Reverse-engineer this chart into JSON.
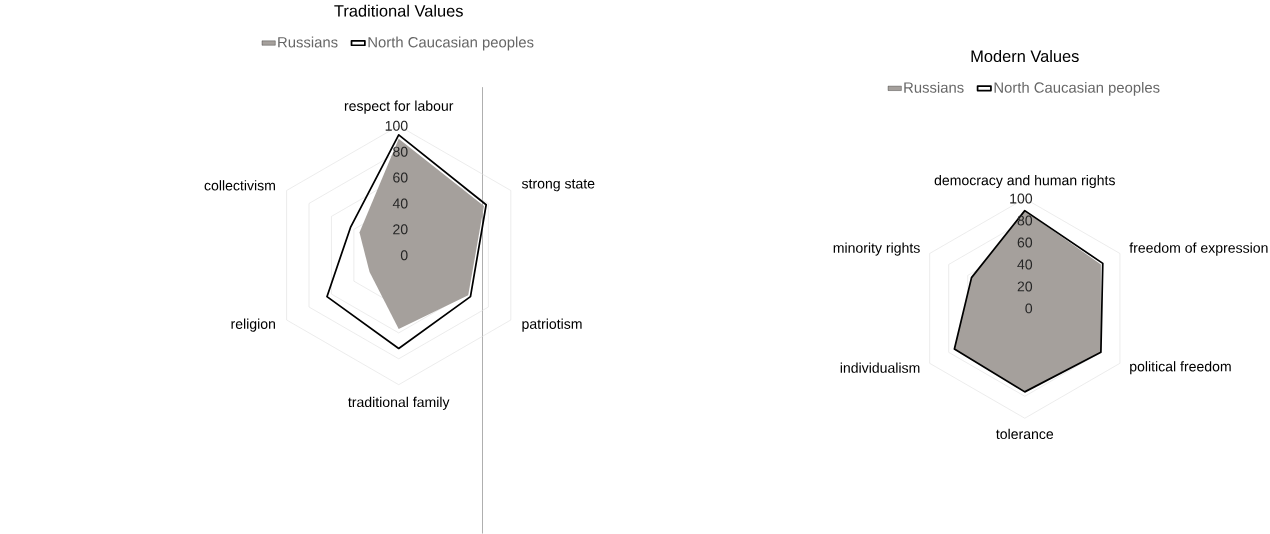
{
  "chart_data": [
    {
      "type": "radar",
      "title": "Traditional Values",
      "categories": [
        "respect for labour",
        "strong state",
        "patriotism",
        "traditional family",
        "religion",
        "collectivism"
      ],
      "series": [
        {
          "name": "Russians",
          "type": "area",
          "color": "#a5a09c",
          "values": [
            90,
            76,
            62,
            57,
            26,
            35
          ]
        },
        {
          "name": "North Caucasian peoples",
          "type": "radar",
          "color": "#000000",
          "values": [
            93,
            78,
            64,
            72,
            64,
            43
          ]
        }
      ],
      "ylim": [
        0,
        100
      ],
      "yticks": [
        0,
        20,
        40,
        60,
        80,
        100
      ],
      "grid": true,
      "legend": "top"
    },
    {
      "type": "radar",
      "title": "Modern Values",
      "categories": [
        "democracy and human rights",
        "freedom of expression",
        "political freedom",
        "tolerance",
        "individualism",
        "minority rights"
      ],
      "series": [
        {
          "name": "Russians",
          "type": "area",
          "color": "#a5a09c",
          "values": [
            89,
            80,
            80,
            76,
            74,
            56
          ]
        },
        {
          "name": "North Caucasian peoples",
          "type": "radar",
          "color": "#000000",
          "values": [
            89,
            82,
            80,
            76,
            74,
            56
          ]
        }
      ],
      "ylim": [
        0,
        100
      ],
      "yticks": [
        0,
        20,
        40,
        60,
        80,
        100
      ],
      "grid": true,
      "legend": "top"
    }
  ]
}
